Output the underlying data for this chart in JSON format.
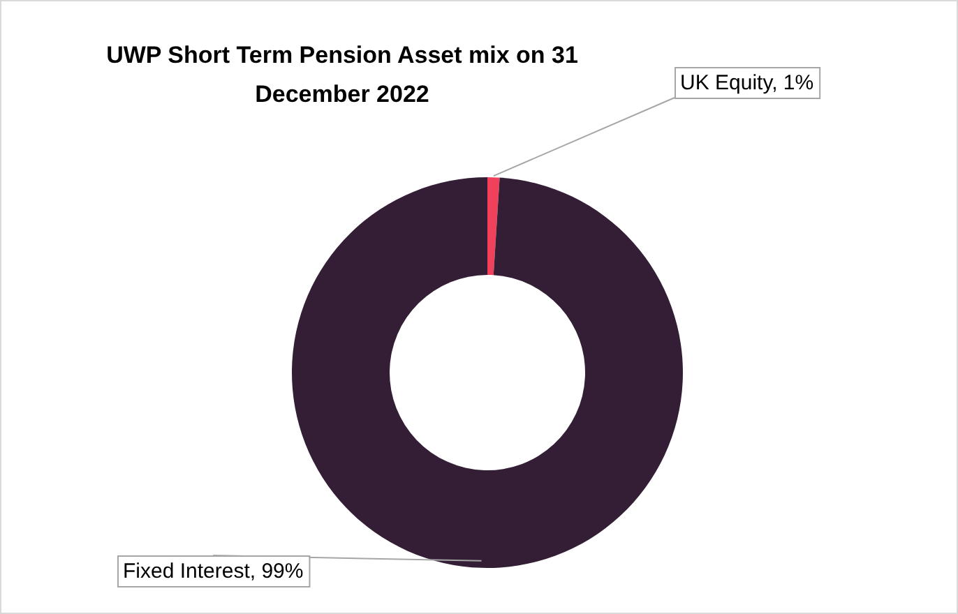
{
  "chart_data": {
    "type": "donut",
    "title": "UWP Short Term Pension Asset mix on 31 December 2022",
    "categories": [
      "UK Equity",
      "Fixed Interest"
    ],
    "values": [
      1,
      99
    ],
    "colors": [
      "#f0405a",
      "#341e36"
    ],
    "value_labels": [
      "1%",
      "99%"
    ],
    "legend": false
  }
}
